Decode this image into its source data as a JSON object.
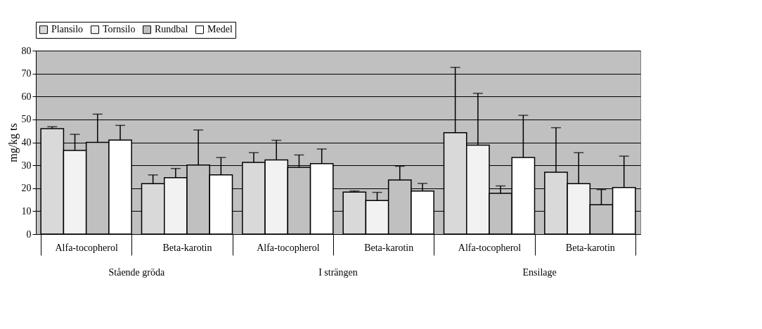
{
  "chart_data": {
    "type": "bar",
    "ylabel": "mg/kg ts",
    "categories": [
      "Alfa-tocopherol",
      "Beta-karotin",
      "Alfa-tocopherol",
      "Beta-karotin",
      "Alfa-tocopherol",
      "Beta-karotin"
    ],
    "series": [
      {
        "name": "Plansilo",
        "color": "#d9d9d9",
        "values": [
          46,
          22,
          31.3,
          18.3,
          44.2,
          27
        ],
        "errors": [
          [
            46,
            46.8
          ],
          [
            22,
            25.8
          ],
          [
            31.3,
            35.5
          ],
          [
            18.3,
            18.8
          ],
          [
            44.2,
            72.7
          ],
          [
            27,
            46.4
          ]
        ]
      },
      {
        "name": "Tornsilo",
        "color": "#f2f2f2",
        "values": [
          36.5,
          24.6,
          32.3,
          14.6,
          38.8,
          22
        ],
        "errors": [
          [
            36.5,
            43.5
          ],
          [
            24.6,
            28.6
          ],
          [
            32.3,
            40.9
          ],
          [
            14.6,
            18.2
          ],
          [
            38.8,
            61.4
          ],
          [
            22,
            35.5
          ]
        ]
      },
      {
        "name": "Rundbal",
        "color": "#c0c0c0",
        "values": [
          40,
          30.1,
          29.1,
          23.6,
          17.8,
          12.8
        ],
        "errors": [
          [
            40,
            52.3
          ],
          [
            30.1,
            45.4
          ],
          [
            29.1,
            34.5
          ],
          [
            23.6,
            29.6
          ],
          [
            17.8,
            21
          ],
          [
            12.8,
            19.4
          ]
        ]
      },
      {
        "name": "Medel",
        "color": "#ffffff",
        "values": [
          41,
          25.8,
          30.7,
          18.8,
          33.4,
          20.3
        ],
        "errors": [
          [
            41,
            47.4
          ],
          [
            25.8,
            33.4
          ],
          [
            30.7,
            37.1
          ],
          [
            18.8,
            22.1
          ],
          [
            33.4,
            51.8
          ],
          [
            20.3,
            34
          ]
        ]
      }
    ],
    "ylim": [
      0,
      80
    ],
    "yticks": [
      0,
      10,
      20,
      30,
      40,
      50,
      60,
      70,
      80
    ],
    "grid": "y",
    "legend": "top",
    "annotations": [
      "Stående gröda",
      "I strängen",
      "Ensilage"
    ]
  }
}
